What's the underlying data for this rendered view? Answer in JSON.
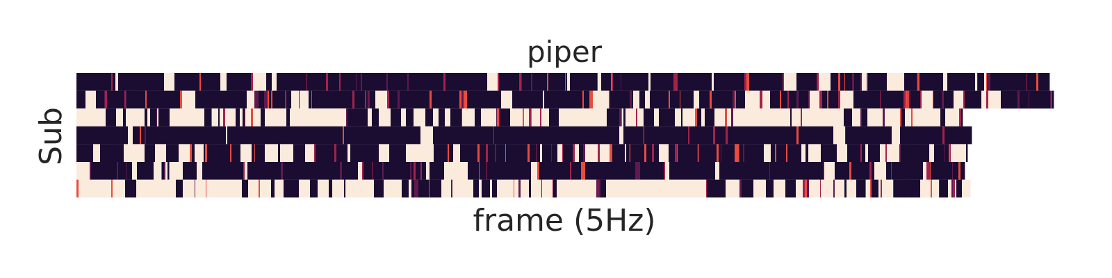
{
  "chart_data": {
    "type": "heatmap",
    "title": "piper",
    "xlabel": "frame (5Hz)",
    "ylabel": "Sub",
    "rows": 7,
    "row_lengths": [
      1400,
      1406,
      1275,
      1288,
      1282,
      1278,
      1286
    ],
    "value_range": [
      0,
      1
    ],
    "colormap": "rocket",
    "colors": {
      "low": "#1b0c31",
      "mid_low": "#5e1a4f",
      "mid": "#a3224c",
      "mid_high": "#e84c3d",
      "high": "#faebdd"
    },
    "row_profiles": [
      {
        "high_fraction": 0.1,
        "mid_fraction": 0.2
      },
      {
        "high_fraction": 0.12,
        "mid_fraction": 0.35
      },
      {
        "high_fraction": 0.62,
        "mid_fraction": 0.18
      },
      {
        "high_fraction": 0.03,
        "mid_fraction": 0.1
      },
      {
        "high_fraction": 0.22,
        "mid_fraction": 0.22
      },
      {
        "high_fraction": 0.14,
        "mid_fraction": 0.2
      },
      {
        "high_fraction": 0.55,
        "mid_fraction": 0.25
      }
    ],
    "grid": false,
    "colorbar": false,
    "x_ticks": false,
    "y_ticks": false
  }
}
